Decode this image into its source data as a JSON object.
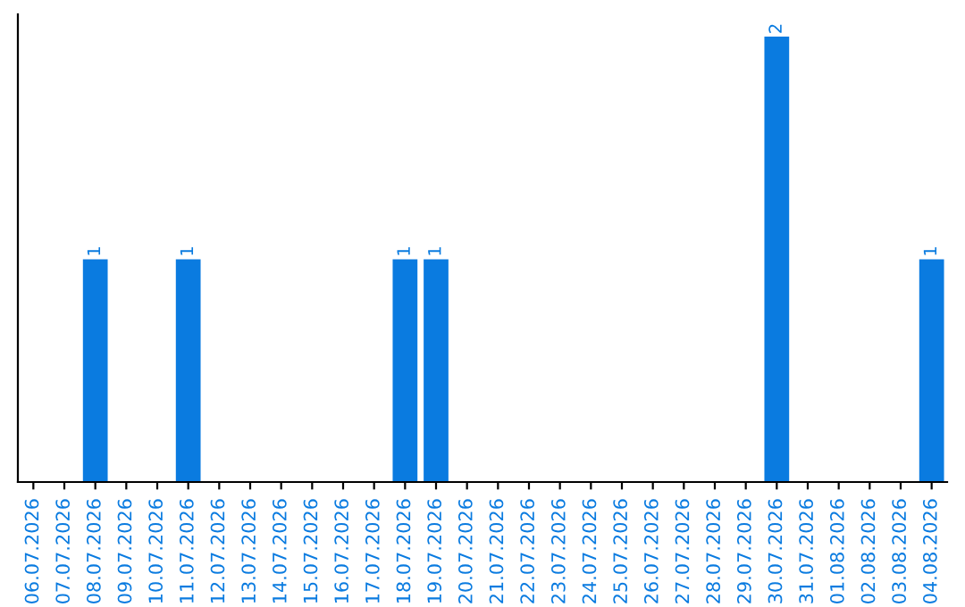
{
  "chart_data": {
    "type": "bar",
    "categories": [
      "06.07.2026",
      "07.07.2026",
      "08.07.2026",
      "09.07.2026",
      "10.07.2026",
      "11.07.2026",
      "12.07.2026",
      "13.07.2026",
      "14.07.2026",
      "15.07.2026",
      "16.07.2026",
      "17.07.2026",
      "18.07.2026",
      "19.07.2026",
      "20.07.2026",
      "21.07.2026",
      "22.07.2026",
      "23.07.2026",
      "24.07.2026",
      "25.07.2026",
      "26.07.2026",
      "27.07.2026",
      "28.07.2026",
      "29.07.2026",
      "30.07.2026",
      "31.07.2026",
      "01.08.2026",
      "02.08.2026",
      "03.08.2026",
      "04.08.2026"
    ],
    "values": [
      0,
      0,
      1,
      0,
      0,
      1,
      0,
      0,
      0,
      0,
      0,
      0,
      1,
      1,
      0,
      0,
      0,
      0,
      0,
      0,
      0,
      0,
      0,
      0,
      2,
      0,
      0,
      0,
      0,
      1
    ],
    "value_labels": [
      null,
      null,
      "1",
      null,
      null,
      "1",
      null,
      null,
      null,
      null,
      null,
      null,
      "1",
      "1",
      null,
      null,
      null,
      null,
      null,
      null,
      null,
      null,
      null,
      null,
      "2",
      null,
      null,
      null,
      null,
      "1"
    ],
    "color": "#0a7be0",
    "tick_labels": "x",
    "grid": false,
    "legend": false
  }
}
